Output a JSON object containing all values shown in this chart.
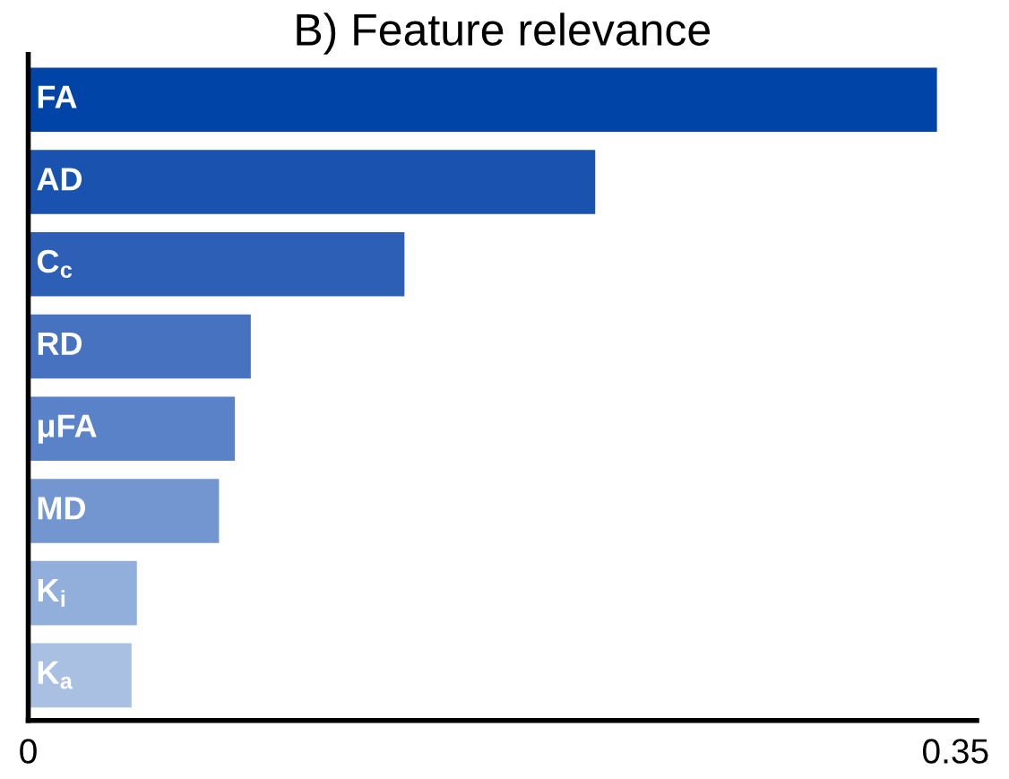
{
  "chart_data": {
    "type": "bar",
    "orientation": "horizontal",
    "title": "B) Feature relevance",
    "categories": [
      "FA",
      "AD",
      "C$_{c}$",
      "RD",
      "μFA",
      "MD",
      "K$_{i}$",
      "K$_{a}$"
    ],
    "values": [
      0.343,
      0.214,
      0.142,
      0.084,
      0.078,
      0.072,
      0.041,
      0.039
    ],
    "colors": [
      "#0044a8",
      "#1a52b0",
      "#2d5fb6",
      "#4672c0",
      "#5a82c8",
      "#7396d0",
      "#92aedb",
      "#a9c0e3"
    ],
    "xlim": [
      0,
      0.358
    ],
    "xticks": [
      0,
      0.35
    ],
    "grid": false
  }
}
